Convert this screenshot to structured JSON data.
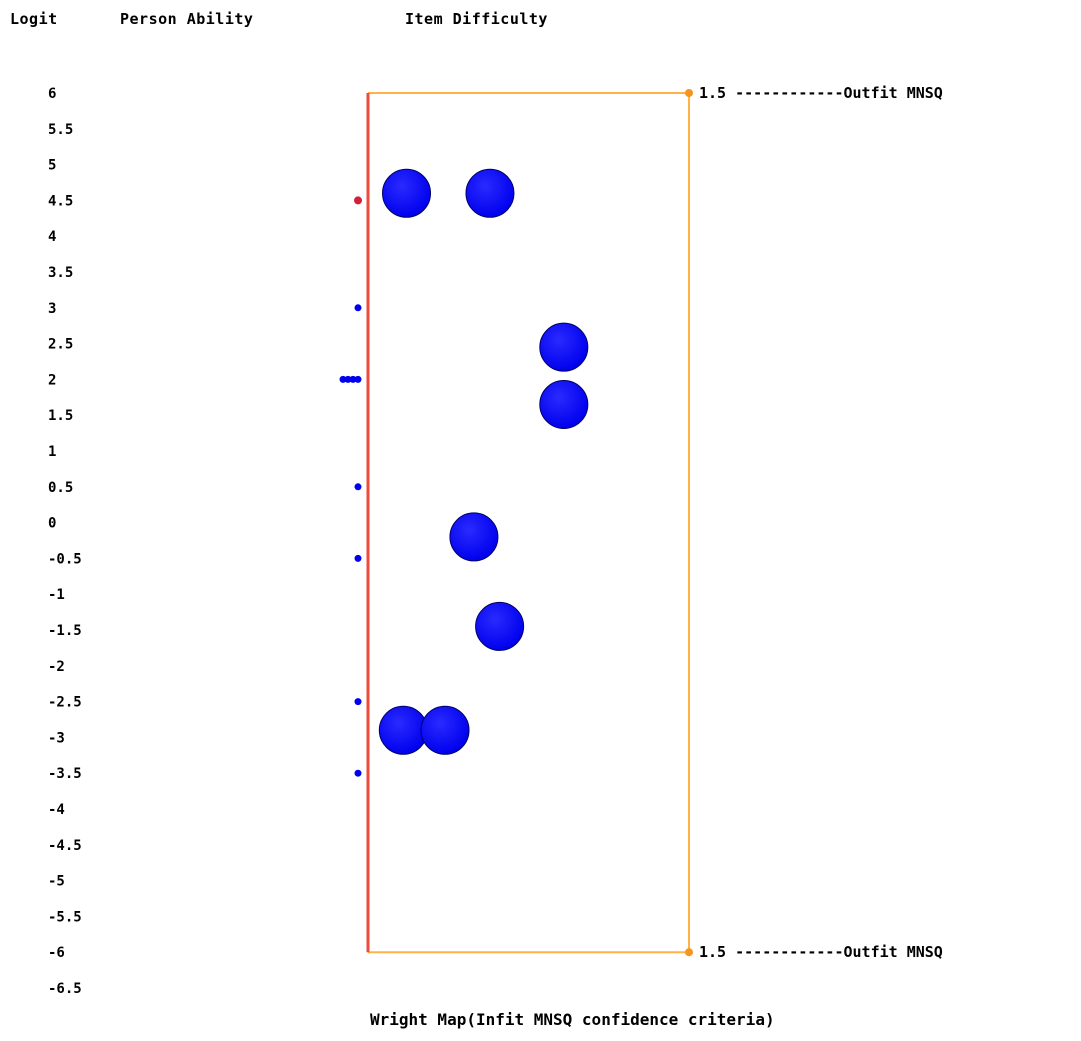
{
  "headers": {
    "logit": "Logit",
    "person_ability": "Person Ability",
    "item_difficulty": "Item Difficulty"
  },
  "caption": "Wright Map(Infit MNSQ confidence criteria)",
  "colors": {
    "person_axis": "#f04a3a",
    "frame": "#ffb347",
    "ref_marker": "#f7941d",
    "item": "#0000ee",
    "item_outline": "#000066",
    "person": "#0000ee",
    "person_highlight": "#d0203a"
  },
  "chart_data": {
    "type": "scatter",
    "title": "Wright Map(Infit MNSQ confidence criteria)",
    "ylabel": "Logit",
    "ylim": [
      -6.5,
      6
    ],
    "y_ticks": [
      "6",
      "5.5",
      "5",
      "4.5",
      "4",
      "3.5",
      "3",
      "2.5",
      "2",
      "1.5",
      "1",
      "0.5",
      "0",
      "-0.5",
      "-1",
      "-1.5",
      "-2",
      "-2.5",
      "-3",
      "-3.5",
      "-4",
      "-4.5",
      "-5",
      "-5.5",
      "-6",
      "-6.5"
    ],
    "reference_lines": [
      {
        "label": "1.5 ------------Outfit MNSQ",
        "logit": 6
      },
      {
        "label": "1.5 ------------Outfit MNSQ",
        "logit": -6
      }
    ],
    "series": [
      {
        "name": "Person Ability",
        "points": [
          {
            "logit": 4.5,
            "count": 1,
            "highlight": true
          },
          {
            "logit": 3,
            "count": 1
          },
          {
            "logit": 2,
            "count": 4
          },
          {
            "logit": 0.5,
            "count": 1
          },
          {
            "logit": -0.5,
            "count": 1
          },
          {
            "logit": -2.5,
            "count": 1
          },
          {
            "logit": -3.5,
            "count": 1
          }
        ]
      },
      {
        "name": "Item Difficulty",
        "points": [
          {
            "logit": 4.6,
            "infit": 0.12
          },
          {
            "logit": 4.6,
            "infit": 0.38
          },
          {
            "logit": 2.45,
            "infit": 0.61
          },
          {
            "logit": 1.65,
            "infit": 0.61
          },
          {
            "logit": -0.2,
            "infit": 0.33
          },
          {
            "logit": -1.45,
            "infit": 0.41
          },
          {
            "logit": -2.9,
            "infit": 0.11
          },
          {
            "logit": -2.9,
            "infit": 0.24
          }
        ]
      }
    ]
  }
}
